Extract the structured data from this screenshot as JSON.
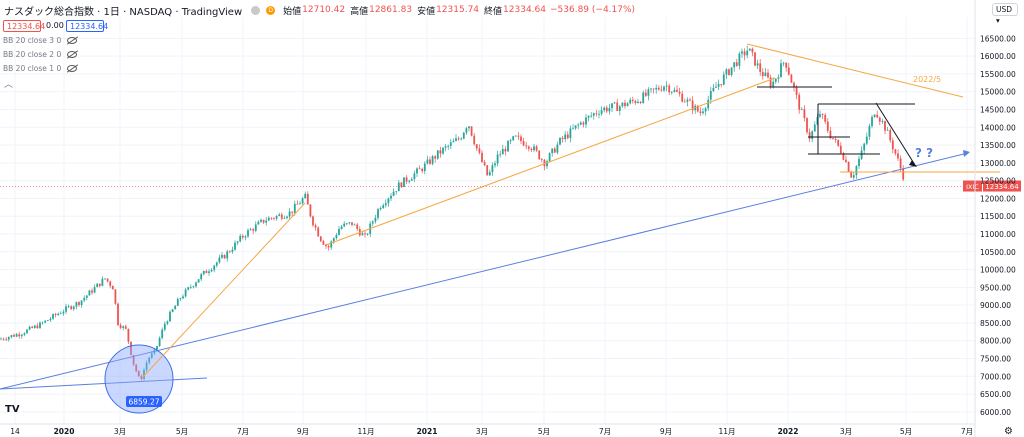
{
  "header": {
    "symbol_title": "ナスダック総合指数 · 1日 · NASDAQ · TradingView",
    "open_label": "始値",
    "open_value": "12710.42",
    "high_label": "高値",
    "high_value": "12861.83",
    "low_label": "安値",
    "low_value": "12315.74",
    "close_label": "終値",
    "close_value": "12334.64",
    "change_value": "−536.89 (−4.17%)",
    "delayed_badge": "D"
  },
  "price_boxes": {
    "sell": "12334.64",
    "spread": "0.00",
    "buy": "12334.64"
  },
  "indicators": [
    {
      "label": "BB 20 close 3 0"
    },
    {
      "label": "BB 20 close 2 0"
    },
    {
      "label": "BB 20 close 1 0"
    }
  ],
  "currency_button": "USD",
  "last_price_label": {
    "ticker": "IXIC",
    "price": "12334.64"
  },
  "annotations": {
    "wedge_label": "2022/5",
    "question_marks": "? ?",
    "low_label": "6859.27"
  },
  "colors": {
    "up": "#26a69a",
    "down": "#ef5350",
    "orange_line": "#f5a742",
    "blue_line": "#5b7fe0",
    "circle_fill": "#8aa9ff",
    "circle_stroke": "#3f6ee8"
  },
  "chart_data": {
    "type": "candlestick",
    "title": "ナスダック総合指数",
    "y_axis": {
      "labels": [
        "16500.00",
        "16000.00",
        "15500.00",
        "15000.00",
        "14500.00",
        "14000.00",
        "13500.00",
        "13000.00",
        "12500.00",
        "12000.00",
        "11500.00",
        "11000.00",
        "10500.00",
        "10000.00",
        "9500.00",
        "9000.00",
        "8500.00",
        "8000.00",
        "7500.00",
        "7000.00",
        "6500.00",
        "6000.00"
      ],
      "range": [
        5800,
        17100
      ]
    },
    "x_axis": {
      "labels": [
        "14",
        "2020",
        "3月",
        "5月",
        "7月",
        "9月",
        "11月",
        "2021",
        "3月",
        "5月",
        "7月",
        "9月",
        "11月",
        "2022",
        "3月",
        "5月",
        "7月"
      ]
    },
    "key_levels": [
      {
        "name": "start",
        "date": "2019-06",
        "value": 8050
      },
      {
        "name": "feb-2020-high",
        "date": "2020-02",
        "value": 9800
      },
      {
        "name": "mar-2020-low",
        "date": "2020-03",
        "value": 6859.27
      },
      {
        "name": "sep-2020-high",
        "date": "2020-09",
        "value": 12050
      },
      {
        "name": "sep-2020-low",
        "date": "2020-09",
        "value": 10600
      },
      {
        "name": "feb-2021-high",
        "date": "2021-02",
        "value": 14150
      },
      {
        "name": "nov-2021-high",
        "date": "2021-11",
        "value": 16200
      },
      {
        "name": "mar-2022-low",
        "date": "2022-03",
        "value": 12550
      },
      {
        "name": "last",
        "date": "2022-05",
        "value": 12334.64
      }
    ]
  }
}
